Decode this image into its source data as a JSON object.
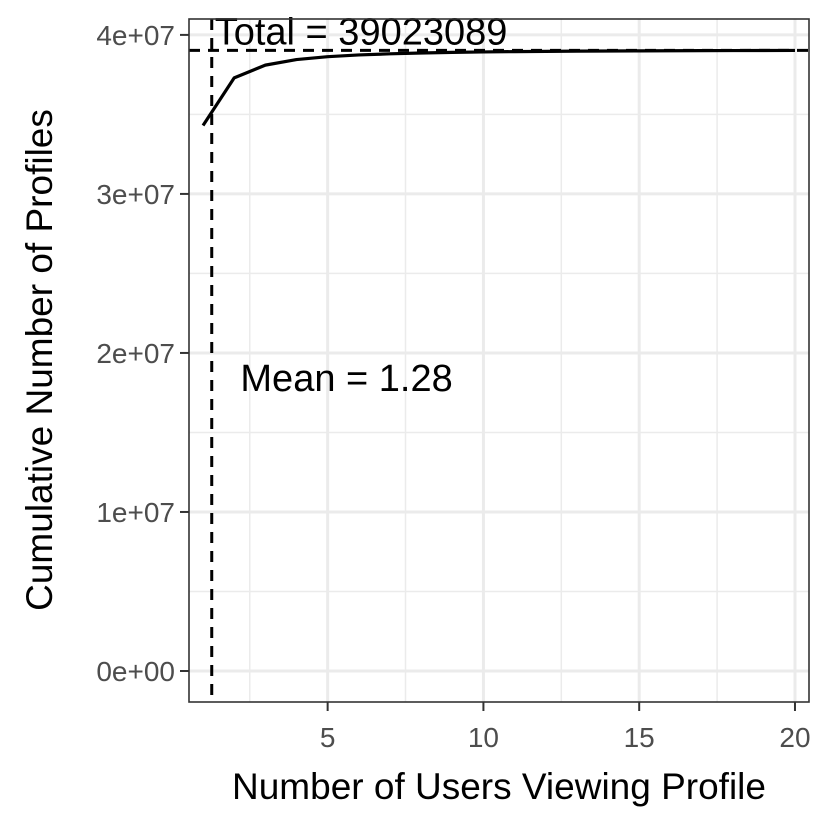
{
  "chart_data": {
    "type": "line",
    "xlabel": "Number of Users Viewing Profile",
    "ylabel": "Cumulative Number of Profiles",
    "xlim": [
      0.55,
      20.45
    ],
    "ylim": [
      -1950000,
      41000000
    ],
    "x_ticks": [
      5,
      10,
      15,
      20
    ],
    "x_tick_labels": [
      "5",
      "10",
      "15",
      "20"
    ],
    "y_ticks": [
      0,
      10000000,
      20000000,
      30000000,
      40000000
    ],
    "y_tick_labels": [
      "0e+00",
      "1e+07",
      "2e+07",
      "3e+07",
      "4e+07"
    ],
    "grid": true,
    "series": [
      {
        "x": [
          1,
          2,
          3,
          4,
          5,
          6,
          7,
          8,
          9,
          10,
          11,
          12,
          13,
          14,
          15,
          16,
          17,
          18,
          19,
          20
        ],
        "values": [
          34300000,
          37300000,
          38100000,
          38450000,
          38630000,
          38740000,
          38810000,
          38860000,
          38900000,
          38930000,
          38950000,
          38965000,
          38978000,
          38988000,
          38996000,
          39003000,
          39009000,
          39014000,
          39019000,
          39023089
        ],
        "color": "#000000"
      }
    ],
    "reference_lines": {
      "mean_x": 1.28,
      "total_y": 39023089
    },
    "annotations": {
      "total": "Total =  39023089",
      "mean": "Mean =  1.28"
    }
  }
}
